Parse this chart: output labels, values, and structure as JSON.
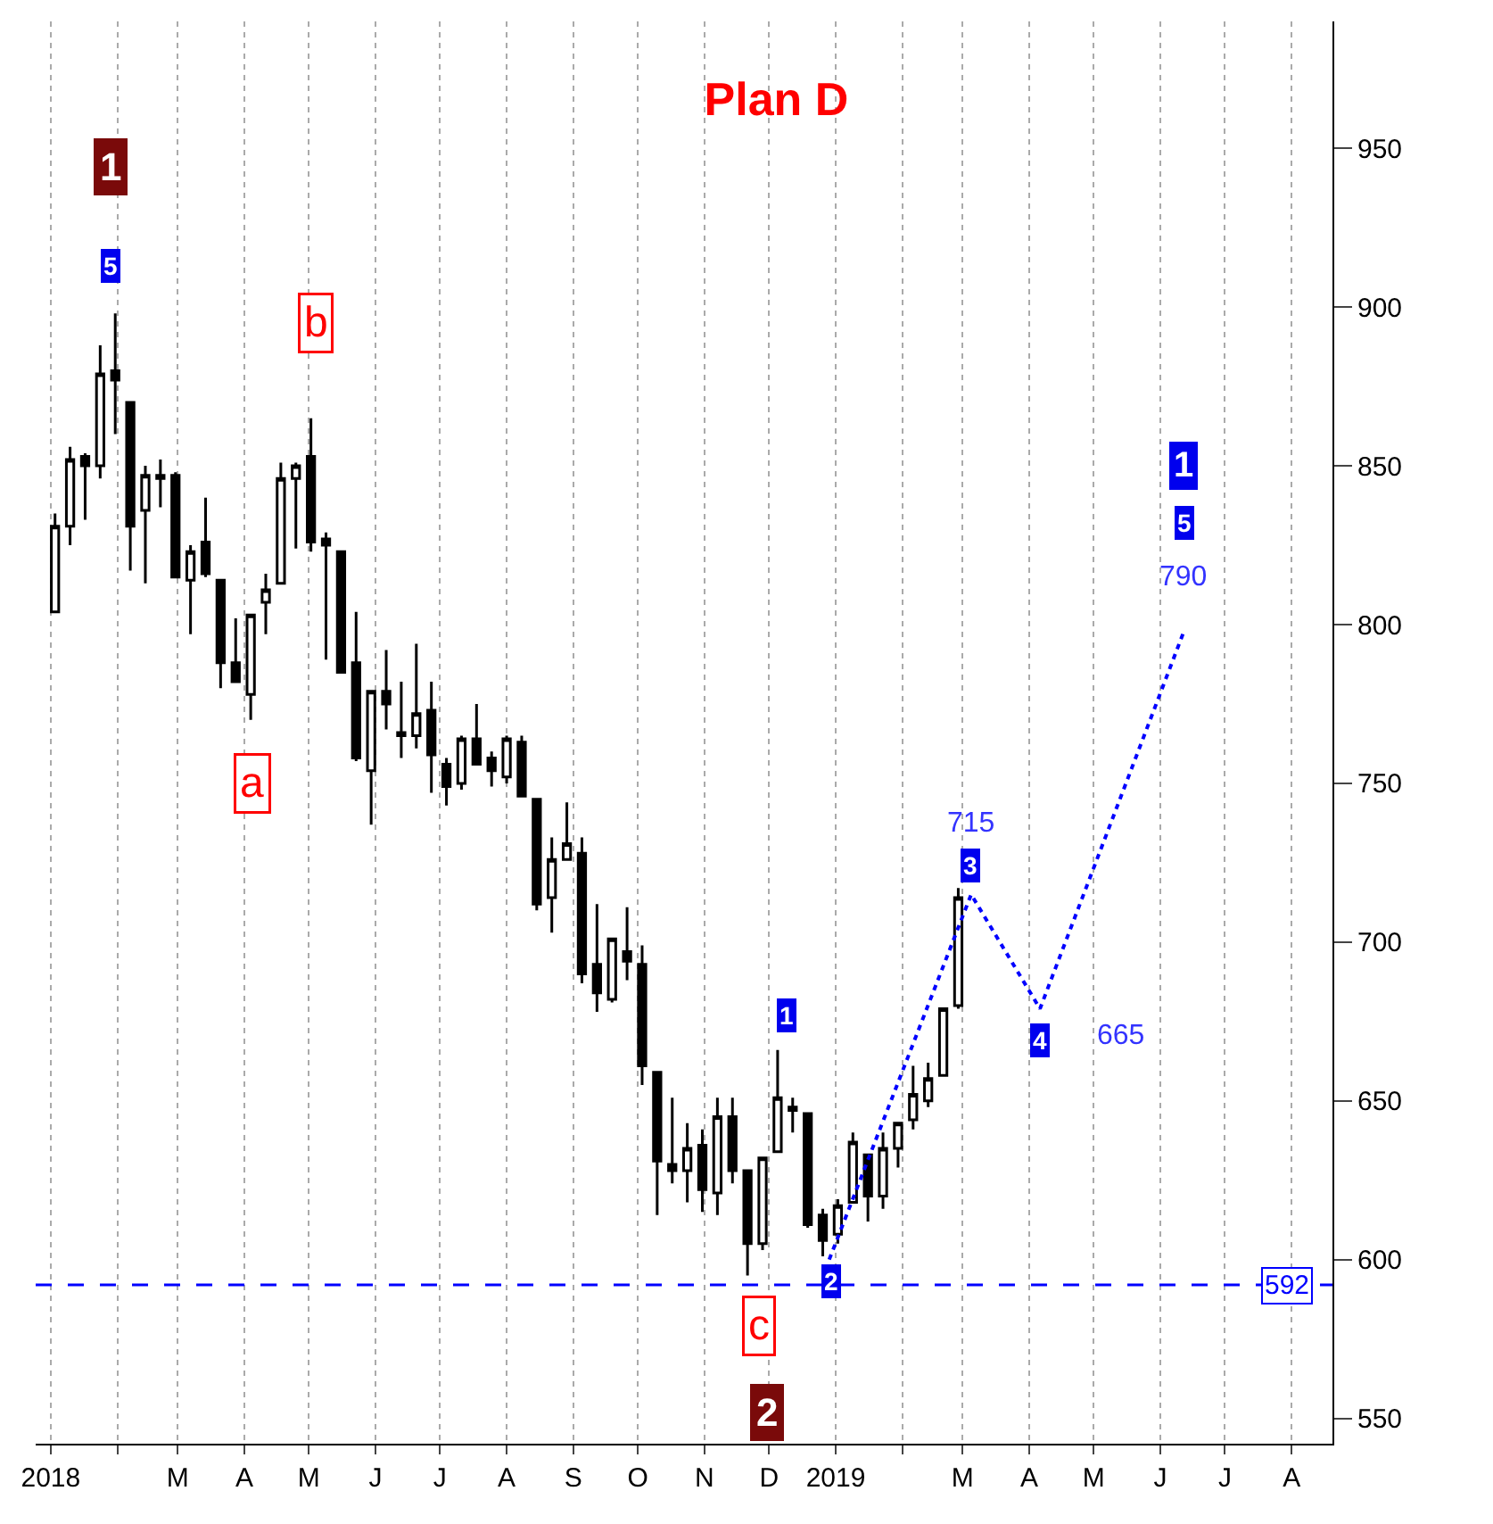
{
  "chart_data": {
    "type": "candlestick",
    "title": "Plan D",
    "x": [
      "2018-01-03",
      "2018-01-10",
      "2018-01-17",
      "2018-01-24",
      "2018-01-31",
      "2018-02-07",
      "2018-02-14",
      "2018-02-21",
      "2018-02-28",
      "2018-03-07",
      "2018-03-14",
      "2018-03-21",
      "2018-03-28",
      "2018-04-04",
      "2018-04-11",
      "2018-04-18",
      "2018-04-25",
      "2018-05-02",
      "2018-05-09",
      "2018-05-16",
      "2018-05-23",
      "2018-05-30",
      "2018-06-06",
      "2018-06-13",
      "2018-06-20",
      "2018-06-27",
      "2018-07-04",
      "2018-07-11",
      "2018-07-18",
      "2018-07-25",
      "2018-08-01",
      "2018-08-08",
      "2018-08-15",
      "2018-08-22",
      "2018-08-29",
      "2018-09-05",
      "2018-09-12",
      "2018-09-19",
      "2018-09-26",
      "2018-10-03",
      "2018-10-10",
      "2018-10-17",
      "2018-10-24",
      "2018-10-31",
      "2018-11-07",
      "2018-11-14",
      "2018-11-21",
      "2018-11-28",
      "2018-12-05",
      "2018-12-12",
      "2018-12-19",
      "2018-12-26",
      "2019-01-02",
      "2019-01-09",
      "2019-01-16",
      "2019-01-23",
      "2019-01-30",
      "2019-02-06",
      "2019-02-13",
      "2019-02-20",
      "2019-02-27"
    ],
    "ohlc": [
      [
        804,
        835,
        804,
        831
      ],
      [
        831,
        856,
        825,
        852
      ],
      [
        853,
        854,
        833,
        850
      ],
      [
        850,
        888,
        846,
        879
      ],
      [
        880,
        898,
        860,
        877
      ],
      [
        870,
        870,
        817,
        831
      ],
      [
        836,
        850,
        813,
        847
      ],
      [
        847,
        852,
        837,
        846
      ],
      [
        847,
        848,
        815,
        815
      ],
      [
        814,
        825,
        797,
        823
      ],
      [
        826,
        840,
        815,
        816
      ],
      [
        814,
        814,
        780,
        788
      ],
      [
        788,
        802,
        782,
        782
      ],
      [
        778,
        803,
        770,
        803
      ],
      [
        807,
        816,
        797,
        811
      ],
      [
        813,
        851,
        813,
        846
      ],
      [
        846,
        851,
        824,
        850
      ],
      [
        853,
        865,
        823,
        826
      ],
      [
        827,
        829,
        789,
        825
      ],
      [
        823,
        823,
        785,
        785
      ],
      [
        788,
        804,
        757,
        758
      ],
      [
        754,
        779,
        737,
        779
      ],
      [
        779,
        792,
        767,
        775
      ],
      [
        766,
        782,
        758,
        765
      ],
      [
        765,
        794,
        761,
        772
      ],
      [
        773,
        782,
        747,
        759
      ],
      [
        756,
        758,
        743,
        749
      ],
      [
        750,
        765,
        748,
        764
      ],
      [
        764,
        775,
        756,
        756
      ],
      [
        758,
        760,
        749,
        754
      ],
      [
        752,
        765,
        750,
        764
      ],
      [
        763,
        765,
        746,
        746
      ],
      [
        745,
        745,
        710,
        712
      ],
      [
        714,
        733,
        703,
        726
      ],
      [
        726,
        744,
        726,
        731
      ],
      [
        728,
        733,
        687,
        690
      ],
      [
        693,
        712,
        678,
        684
      ],
      [
        682,
        701,
        681,
        701
      ],
      [
        697,
        711,
        688,
        694
      ],
      [
        693,
        699,
        655,
        661
      ],
      [
        659,
        659,
        614,
        631
      ],
      [
        630,
        651,
        624,
        628
      ],
      [
        628,
        643,
        618,
        635
      ],
      [
        636,
        641,
        615,
        622
      ],
      [
        621,
        651,
        614,
        645
      ],
      [
        645,
        651,
        624,
        628
      ],
      [
        628,
        628,
        595,
        605
      ],
      [
        605,
        632,
        603,
        632
      ],
      [
        634,
        666,
        634,
        651
      ],
      [
        648,
        651,
        640,
        647
      ],
      [
        646,
        646,
        610,
        611
      ],
      [
        614,
        616,
        601,
        606
      ],
      [
        608,
        619,
        605,
        617
      ],
      [
        618,
        640,
        618,
        637
      ],
      [
        633,
        633,
        612,
        620
      ],
      [
        620,
        640,
        616,
        635
      ],
      [
        635,
        643,
        629,
        643
      ],
      [
        644,
        661,
        641,
        652
      ],
      [
        650,
        662,
        648,
        657
      ],
      [
        658,
        679,
        658,
        679
      ],
      [
        680,
        717,
        679,
        714
      ]
    ],
    "series": [
      {
        "type": "line",
        "color": "#0000ff",
        "line_style": "dotted",
        "x": [
          "2018-12-29",
          "2019-03-05",
          "2019-04-06",
          "2019-06-12"
        ],
        "values": [
          600,
          715,
          679,
          798
        ]
      }
    ],
    "ref_lines": [
      {
        "axis": "y",
        "value": 592,
        "label": "592",
        "color": "#0000ff",
        "line_style": "dashed"
      }
    ],
    "annotations": [
      {
        "text": "1",
        "x": "2018-01-29",
        "y": 944
      },
      {
        "text": "5",
        "x": "2018-01-29",
        "y": 913
      },
      {
        "text": "b",
        "x": "2018-05-04",
        "y": 895
      },
      {
        "text": "a",
        "x": "2018-04-05",
        "y": 750
      },
      {
        "text": "1",
        "x": "2018-12-09",
        "y": 677
      },
      {
        "text": "2",
        "x": "2018-12-30",
        "y": 593
      },
      {
        "text": "715",
        "x": "2019-03-05",
        "y": 715
      },
      {
        "text": "3",
        "x": "2019-03-05",
        "y": 724
      },
      {
        "text": "4",
        "x": "2019-04-06",
        "y": 669
      },
      {
        "text": "665",
        "x": "2019-04-06",
        "y": 679
      },
      {
        "text": "1",
        "x": "2019-06-12",
        "y": 850
      },
      {
        "text": "5",
        "x": "2019-06-12",
        "y": 832
      },
      {
        "text": "790",
        "x": "2019-06-12",
        "y": 798
      },
      {
        "text": "c",
        "x": "2018-11-26",
        "y": 579
      },
      {
        "text": "2",
        "x": "2018-11-30",
        "y": 552
      }
    ],
    "xlim": [
      "2017-12-25",
      "2019-08-20"
    ],
    "xticks": [
      {
        "value": "2018-01-01",
        "label": "2018"
      },
      {
        "value": "2018-02-01",
        "label": null
      },
      {
        "value": "2018-03-01",
        "label": "M"
      },
      {
        "value": "2018-04-01",
        "label": "A"
      },
      {
        "value": "2018-05-01",
        "label": "M"
      },
      {
        "value": "2018-06-01",
        "label": "J"
      },
      {
        "value": "2018-07-01",
        "label": "J"
      },
      {
        "value": "2018-08-01",
        "label": "A"
      },
      {
        "value": "2018-09-01",
        "label": "S"
      },
      {
        "value": "2018-10-01",
        "label": "O"
      },
      {
        "value": "2018-11-01",
        "label": "N"
      },
      {
        "value": "2018-12-01",
        "label": "D"
      },
      {
        "value": "2019-01-01",
        "label": "2019"
      },
      {
        "value": "2019-02-01",
        "label": null
      },
      {
        "value": "2019-03-01",
        "label": "M"
      },
      {
        "value": "2019-04-01",
        "label": "A"
      },
      {
        "value": "2019-05-01",
        "label": "M"
      },
      {
        "value": "2019-06-01",
        "label": "J"
      },
      {
        "value": "2019-07-01",
        "label": "J"
      },
      {
        "value": "2019-08-01",
        "label": "A"
      }
    ],
    "ylim": [
      542,
      990
    ],
    "yticks": [
      550,
      600,
      650,
      700,
      750,
      800,
      850,
      900,
      950
    ],
    "grid": "x"
  }
}
